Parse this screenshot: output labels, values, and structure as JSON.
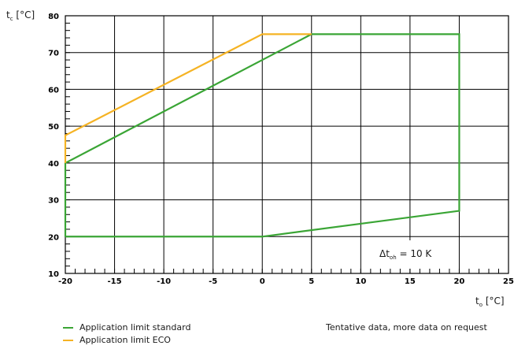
{
  "chart_data": {
    "type": "line",
    "x_axis": {
      "label_main": "t",
      "label_sub": "o",
      "label_unit": "[°C]",
      "range": [
        -20,
        25
      ],
      "ticks": [
        -20,
        -15,
        -10,
        -5,
        0,
        5,
        10,
        15,
        20,
        25
      ]
    },
    "y_axis": {
      "label_main": "t",
      "label_sub": "c",
      "label_unit": "[°C]",
      "range": [
        10,
        80
      ],
      "ticks": [
        10,
        20,
        30,
        40,
        50,
        60,
        70,
        80
      ]
    },
    "grid": true,
    "series": [
      {
        "name": "Application limit standard",
        "color": "#3aa535",
        "points": [
          [
            -20,
            20
          ],
          [
            0,
            20
          ],
          [
            20,
            27
          ],
          [
            20,
            75
          ],
          [
            5,
            75
          ],
          [
            -20,
            40
          ],
          [
            -20,
            20
          ]
        ]
      },
      {
        "name": "Application limit ECO",
        "color": "#f5b324",
        "points": [
          [
            -20,
            40
          ],
          [
            -20,
            47.5
          ],
          [
            0,
            75
          ],
          [
            5,
            75
          ]
        ]
      }
    ],
    "annotation": {
      "main": "Δt",
      "sub": "oh",
      "rest": " = 10 K"
    },
    "note": "Tentative data, more data on request"
  }
}
